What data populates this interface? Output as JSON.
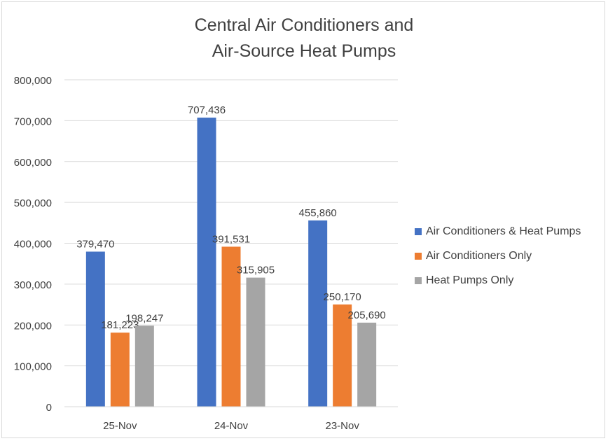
{
  "chart_data": {
    "type": "bar",
    "title": "Central Air Conditioners and Air-Source Heat Pumps",
    "title_lines": [
      "Central Air Conditioners and",
      "Air-Source Heat Pumps"
    ],
    "categories": [
      "25-Nov",
      "24-Nov",
      "23-Nov"
    ],
    "series": [
      {
        "name": "Air Conditioners & Heat Pumps",
        "color": "#4472c4",
        "values": [
          379470,
          707436,
          455860
        ]
      },
      {
        "name": "Air Conditioners Only",
        "color": "#ed7d31",
        "values": [
          181223,
          391531,
          250170
        ]
      },
      {
        "name": "Heat Pumps Only",
        "color": "#a5a5a5",
        "values": [
          198247,
          315905,
          205690
        ]
      }
    ],
    "ylim": [
      0,
      800000
    ],
    "yticks": [
      0,
      100000,
      200000,
      300000,
      400000,
      500000,
      600000,
      700000,
      800000
    ],
    "ytick_labels": [
      "0",
      "100,000",
      "200,000",
      "300,000",
      "400,000",
      "500,000",
      "600,000",
      "700,000",
      "800,000"
    ],
    "data_labels": [
      [
        "379,470",
        "707,436",
        "455,860"
      ],
      [
        "181,223",
        "391,531",
        "250,170"
      ],
      [
        "198,247",
        "315,905",
        "205,690"
      ]
    ],
    "xlabel": "",
    "ylabel": "",
    "grid": true,
    "legend_position": "right",
    "colors": {
      "gridline": "#d9d9d9",
      "text": "#404040",
      "border": "#d9d9d9"
    }
  }
}
